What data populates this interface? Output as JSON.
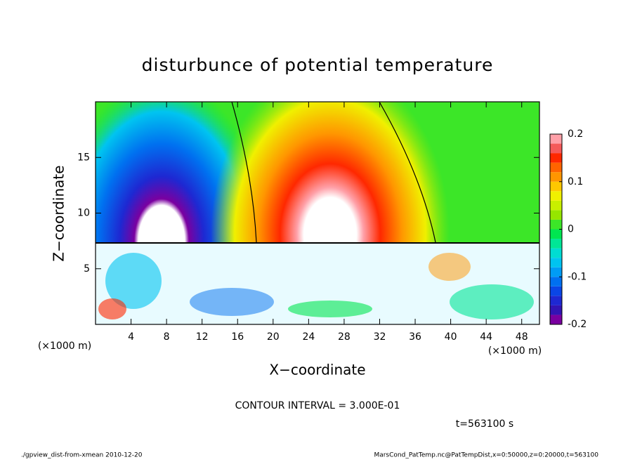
{
  "chart_data": {
    "type": "contour",
    "title": "disturbunce of potential temperature",
    "x_label": "X−coordinate",
    "y_label": "Z−coordinate",
    "x_unit_label": "(×1000 m)",
    "y_unit_label": "(×1000 m)",
    "xlim": [
      0,
      50
    ],
    "ylim": [
      0,
      20
    ],
    "xticks": [
      4,
      8,
      12,
      16,
      20,
      24,
      28,
      32,
      36,
      40,
      44,
      48
    ],
    "yticks": [
      5,
      10,
      15
    ],
    "colorbar": {
      "lim": [
        -0.2,
        0.2
      ],
      "ticks": [
        0.2,
        0.1,
        0,
        -0.1,
        -0.2
      ],
      "levels": [
        -0.2,
        -0.18,
        -0.16,
        -0.14,
        -0.12,
        -0.1,
        -0.08,
        -0.06,
        -0.04,
        -0.02,
        0,
        0.02,
        0.04,
        0.06,
        0.08,
        0.1,
        0.12,
        0.14,
        0.16,
        0.18,
        0.2
      ],
      "colors": [
        "#7a00a0",
        "#3214b4",
        "#1e28d2",
        "#0a46e6",
        "#0070f0",
        "#009cf5",
        "#00c4f0",
        "#00dcd2",
        "#00e696",
        "#00e650",
        "#3ce628",
        "#96e600",
        "#c8f000",
        "#f0f000",
        "#ffc800",
        "#ff9600",
        "#ff6400",
        "#ff2800",
        "#f55a5a",
        "#ffa0a8"
      ]
    },
    "contour_interval": "CONTOUR INTERVAL = 3.000E-01",
    "time_label": "t=563100 s",
    "footer_left": "./gpview_dist-from-xmean  2010-12-20",
    "footer_right": "MarsCond_PatTemp.nc@PatTempDist,x=0:50000,z=0:20000,t=563100"
  }
}
